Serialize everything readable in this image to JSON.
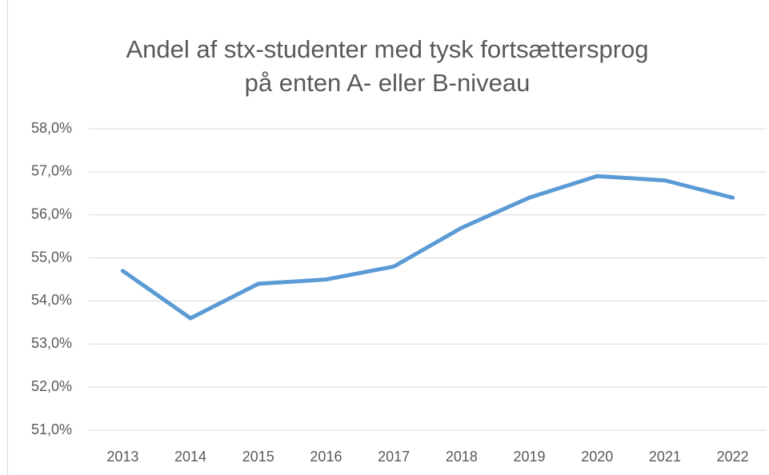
{
  "chart_data": {
    "type": "line",
    "title": [
      "Andel af stx-studenter med tysk fortsættersprog",
      "på enten A- eller B-niveau"
    ],
    "categories": [
      "2013",
      "2014",
      "2015",
      "2016",
      "2017",
      "2018",
      "2019",
      "2020",
      "2021",
      "2022"
    ],
    "series": [
      {
        "name": "Andel",
        "color": "#5b9bd5",
        "values": [
          54.7,
          53.6,
          54.4,
          54.5,
          54.8,
          55.7,
          56.4,
          56.9,
          56.8,
          56.4
        ]
      }
    ],
    "ylim": [
      51,
      58
    ],
    "yticks": [
      {
        "value": 51,
        "label": "51,0%"
      },
      {
        "value": 52,
        "label": "52,0%"
      },
      {
        "value": 53,
        "label": "53,0%"
      },
      {
        "value": 54,
        "label": "54,0%"
      },
      {
        "value": 55,
        "label": "55,0%"
      },
      {
        "value": 56,
        "label": "56,0%"
      },
      {
        "value": 57,
        "label": "57,0%"
      },
      {
        "value": 58,
        "label": "58,0%"
      }
    ],
    "grid": true
  }
}
